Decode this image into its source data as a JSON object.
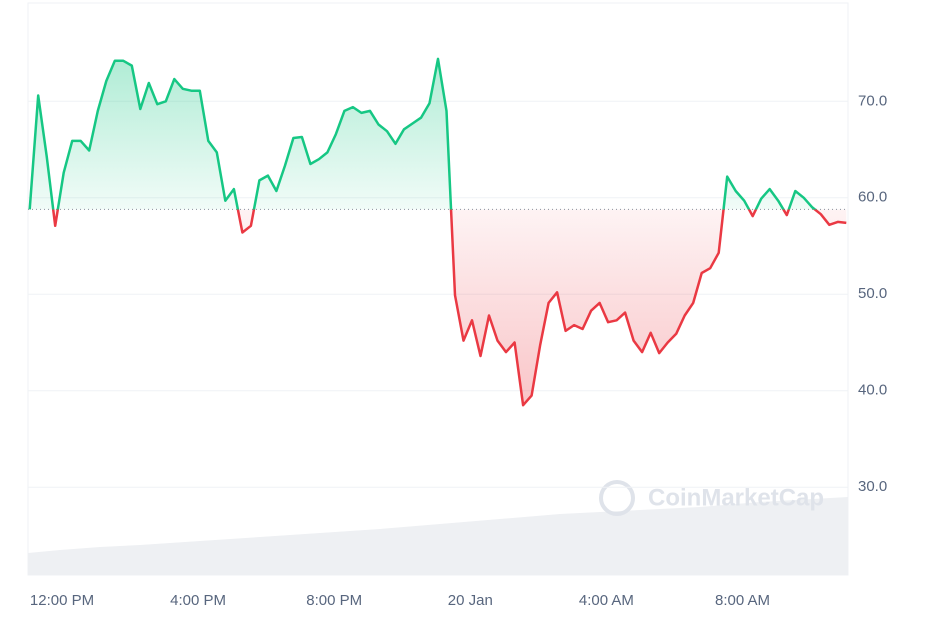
{
  "chart_data": {
    "type": "line",
    "watermark": "CoinMarketCap",
    "x": [
      -0.95,
      -0.7,
      -0.45,
      -0.2,
      0.05,
      0.3,
      0.55,
      0.8,
      1.05,
      1.3,
      1.55,
      1.8,
      2.05,
      2.3,
      2.55,
      2.8,
      3.05,
      3.3,
      3.55,
      3.8,
      4.05,
      4.3,
      4.55,
      4.8,
      5.05,
      5.3,
      5.55,
      5.8,
      6.05,
      6.3,
      6.55,
      6.8,
      7.05,
      7.3,
      7.55,
      7.8,
      8.05,
      8.3,
      8.55,
      8.8,
      9.05,
      9.3,
      9.55,
      9.8,
      10.05,
      10.3,
      10.55,
      10.8,
      11.05,
      11.3,
      11.55,
      11.8,
      12.05,
      12.3,
      12.55,
      12.8,
      13.05,
      13.3,
      13.55,
      13.8,
      14.05,
      14.3,
      14.55,
      14.8,
      15.05,
      15.3,
      15.55,
      15.8,
      16.05,
      16.3,
      16.55,
      16.8,
      17.05,
      17.3,
      17.55,
      17.8,
      18.05,
      18.3,
      18.55,
      18.8,
      19.05,
      19.3,
      19.55,
      19.8,
      20.05,
      20.3,
      20.55,
      20.8,
      21.05,
      21.3,
      21.55,
      21.8,
      22.05,
      22.3,
      22.55,
      22.8,
      23.05
    ],
    "values": [
      58.8,
      70.6,
      64.3,
      57.1,
      62.6,
      65.9,
      65.9,
      64.9,
      69.0,
      72.1,
      74.2,
      74.2,
      73.7,
      69.2,
      71.9,
      69.7,
      70.0,
      72.3,
      71.3,
      71.1,
      71.1,
      65.9,
      64.7,
      59.7,
      60.9,
      56.4,
      57.1,
      61.8,
      62.3,
      60.7,
      63.3,
      66.2,
      66.3,
      63.5,
      64.0,
      64.7,
      66.6,
      69.0,
      69.4,
      68.8,
      69.0,
      67.6,
      66.9,
      65.6,
      67.1,
      67.7,
      68.3,
      69.8,
      74.4,
      69.0,
      49.9,
      45.2,
      47.3,
      43.6,
      47.8,
      45.2,
      44.0,
      45.0,
      38.5,
      39.5,
      44.7,
      49.1,
      50.2,
      46.2,
      46.8,
      46.4,
      48.3,
      49.1,
      47.1,
      47.3,
      48.1,
      45.2,
      44.0,
      46.0,
      43.9,
      45.0,
      45.9,
      47.8,
      49.1,
      52.2,
      52.7,
      54.3,
      62.2,
      60.7,
      59.7,
      58.1,
      59.9,
      60.9,
      59.7,
      58.2,
      60.7,
      60.0,
      59.0,
      58.3,
      57.2,
      57.5,
      57.4
    ],
    "baseline": 58.8,
    "up_color": "#16c784",
    "down_color": "#ea3943",
    "xlim": [
      -1,
      23.1
    ],
    "xticks": [
      {
        "value": 0,
        "label": "12:00 PM"
      },
      {
        "value": 4,
        "label": "4:00 PM"
      },
      {
        "value": 8,
        "label": "8:00 PM"
      },
      {
        "value": 12,
        "label": "20 Jan"
      },
      {
        "value": 16,
        "label": "4:00 AM"
      },
      {
        "value": 20,
        "label": "8:00 AM"
      }
    ],
    "ylim": [
      20.9,
      80.5
    ],
    "yticks": [
      {
        "value": 30,
        "label": "30.0"
      },
      {
        "value": 40,
        "label": "40.0"
      },
      {
        "value": 50,
        "label": "50.0"
      },
      {
        "value": 60,
        "label": "60.0"
      },
      {
        "value": 70,
        "label": "70.0"
      }
    ],
    "grid": true
  }
}
